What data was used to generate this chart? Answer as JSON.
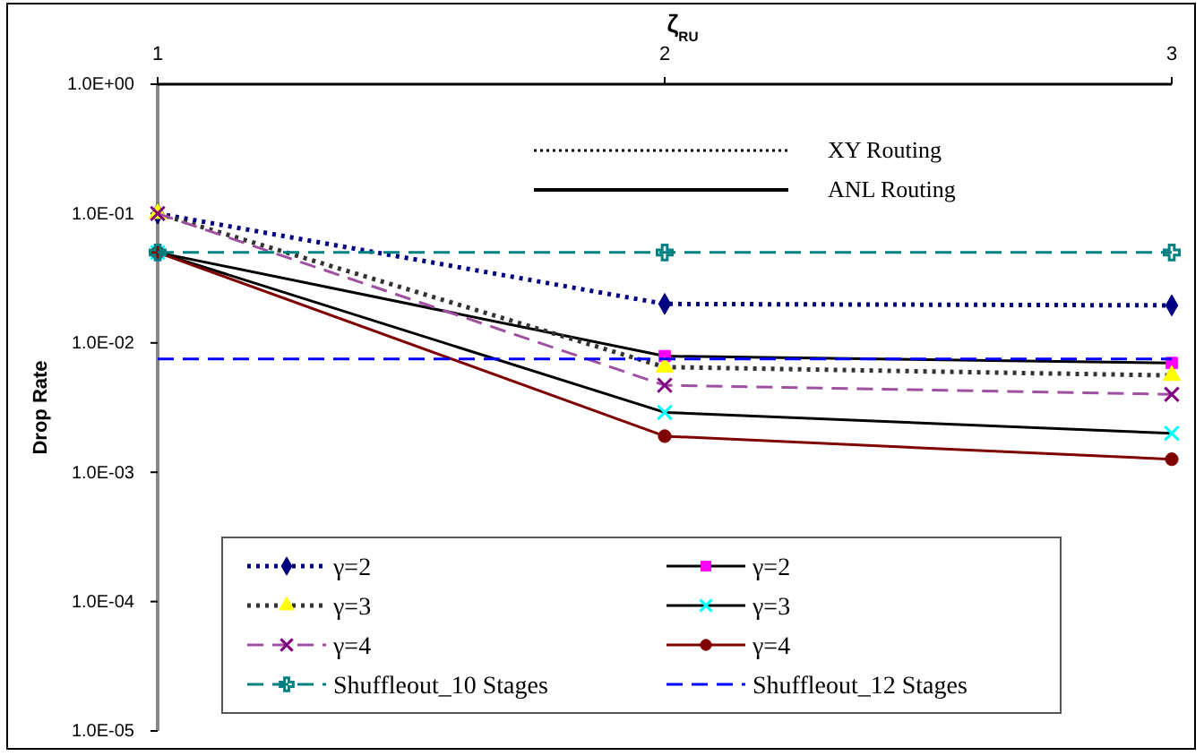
{
  "chart_data": {
    "type": "line",
    "xlabel": "ζ$_{RU}$",
    "ylabel": "Drop Rate",
    "log": "y",
    "grid": false,
    "legend": "bottom",
    "x": [
      1,
      2,
      3
    ],
    "xlim": [
      1,
      3
    ],
    "xticks": [
      1,
      2,
      3
    ],
    "ylim": [
      1e-05,
      1
    ],
    "yticks": [
      {
        "value": 1,
        "label": "1.0E+00"
      },
      {
        "value": 0.1,
        "label": "1.0E-01"
      },
      {
        "value": 0.01,
        "label": "1.0E-02"
      },
      {
        "value": 0.001,
        "label": "1.0E-03"
      },
      {
        "value": 0.0001,
        "label": "1.0E-04"
      },
      {
        "value": 1e-05,
        "label": "1.0E-05"
      }
    ],
    "annotations": [
      "XY Routing",
      "ANL Routing"
    ],
    "series": [
      {
        "name": "γ=2",
        "color": "#000080",
        "line_style": "dotted",
        "marker": "diamond",
        "values": [
          0.1,
          0.02,
          0.0195
        ]
      },
      {
        "name": "γ=2",
        "color": "#000000",
        "line_style": "solid",
        "marker": "square",
        "colors": [
          "#ff00ff",
          "#ff00ff",
          "#ff00ff"
        ],
        "values": [
          0.05,
          0.0079,
          0.007
        ]
      },
      {
        "name": "γ=3",
        "color": "#333333",
        "line_style": "dotted",
        "marker": "triangle",
        "colors": [
          "#ffff00",
          "#ffff00",
          "#ffff00"
        ],
        "values": [
          0.1,
          0.0065,
          0.0056
        ]
      },
      {
        "name": "γ=3",
        "color": "#000000",
        "line_style": "solid",
        "marker": "cross",
        "colors": [
          "#00ffff",
          "#00ffff",
          "#00ffff"
        ],
        "values": [
          0.05,
          0.0029,
          0.002
        ]
      },
      {
        "name": "γ=4",
        "color": "#a050a0",
        "line_style": "dashed",
        "marker": "cross",
        "colors": [
          "#800080",
          "#800080",
          "#800080"
        ],
        "values": [
          0.1,
          0.0047,
          0.004
        ]
      },
      {
        "name": "γ=4",
        "color": "#800000",
        "line_style": "solid",
        "marker": "circle",
        "values": [
          0.05,
          0.0019,
          0.00126
        ]
      },
      {
        "name": "Shuffleout_10 Stages",
        "color": "#008080",
        "line_style": "dashed",
        "marker": "plus",
        "values": [
          0.05,
          0.05,
          0.05
        ]
      },
      {
        "name": "Shuffleout_12 Stages",
        "color": "#0000ff",
        "line_style": "dashed",
        "marker": "none",
        "values": [
          0.0075,
          0.0075,
          0.0075
        ]
      }
    ]
  }
}
